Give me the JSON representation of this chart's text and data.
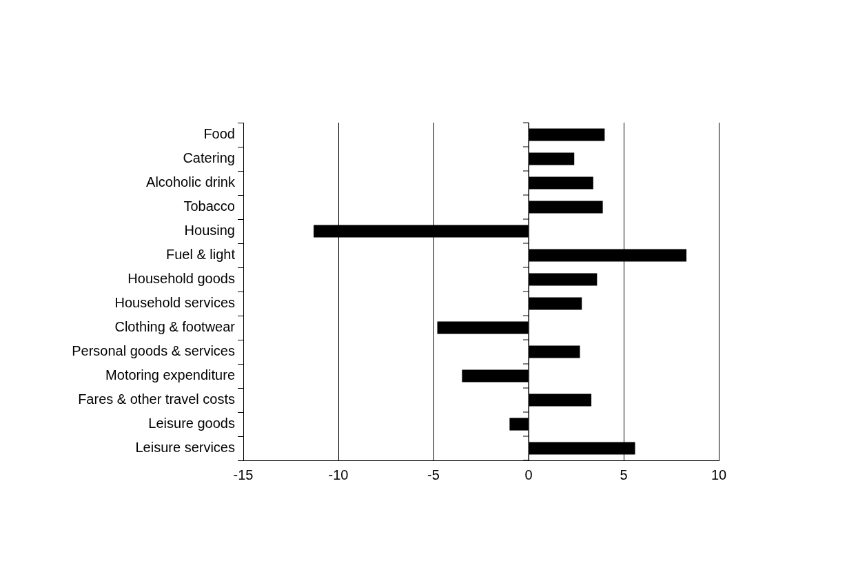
{
  "chart_data": {
    "type": "bar",
    "orientation": "horizontal",
    "categories": [
      "Food",
      "Catering",
      "Alcoholic drink",
      "Tobacco",
      "Housing",
      "Fuel & light",
      "Household goods",
      "Household services",
      "Clothing & footwear",
      "Personal goods & services",
      "Motoring expenditure",
      "Fares & other travel costs",
      "Leisure goods",
      "Leisure services"
    ],
    "values": [
      4.0,
      2.4,
      3.4,
      3.9,
      -11.3,
      8.3,
      3.6,
      2.8,
      -4.8,
      2.7,
      -3.5,
      3.3,
      -1.0,
      5.6
    ],
    "color": "#000000",
    "xlim": [
      -15,
      10
    ],
    "xticks": [
      -15,
      -10,
      -5,
      0,
      5,
      10
    ],
    "grid": "x"
  }
}
